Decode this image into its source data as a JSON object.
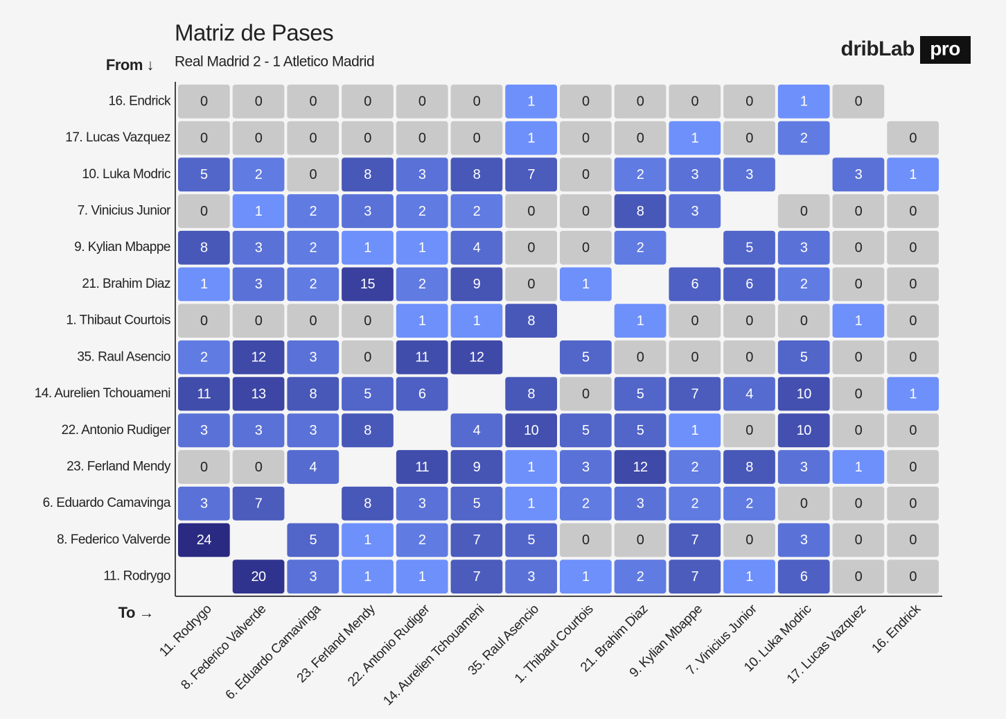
{
  "chart_data": {
    "type": "heatmap",
    "title": "Matriz de Pases",
    "subtitle": "Real Madrid 2 - 1 Atletico Madrid",
    "brand": "dribLab",
    "brand_badge": "pro",
    "y_axis_label": "From ↓",
    "x_axis_label": "To →",
    "rows": [
      "16. Endrick",
      "17. Lucas Vazquez",
      "10. Luka Modric",
      "7. Vinicius Junior",
      "9. Kylian Mbappe",
      "21. Brahim Diaz",
      "1. Thibaut Courtois",
      "35. Raul Asencio",
      "14. Aurelien Tchouameni",
      "22. Antonio Rudiger",
      "23. Ferland Mendy",
      "6. Eduardo Camavinga",
      "8. Federico Valverde",
      "11. Rodrygo"
    ],
    "columns": [
      "11. Rodrygo",
      "8. Federico Valverde",
      "6. Eduardo Camavinga",
      "23. Ferland Mendy",
      "22. Antonio Rudiger",
      "14. Aurelien Tchouameni",
      "35. Raul Asencio",
      "1. Thibaut Courtois",
      "21. Brahim Diaz",
      "9. Kylian Mbappe",
      "7. Vinicius Junior",
      "10. Luka Modric",
      "17. Lucas Vazquez",
      "16. Endrick"
    ],
    "values": [
      [
        0,
        0,
        0,
        0,
        0,
        0,
        1,
        0,
        0,
        0,
        0,
        1,
        0,
        null
      ],
      [
        0,
        0,
        0,
        0,
        0,
        0,
        1,
        0,
        0,
        1,
        0,
        2,
        null,
        0
      ],
      [
        5,
        2,
        0,
        8,
        3,
        8,
        7,
        0,
        2,
        3,
        3,
        null,
        3,
        1
      ],
      [
        0,
        1,
        2,
        3,
        2,
        2,
        0,
        0,
        8,
        3,
        null,
        0,
        0,
        0
      ],
      [
        8,
        3,
        2,
        1,
        1,
        4,
        0,
        0,
        2,
        null,
        5,
        3,
        0,
        0
      ],
      [
        1,
        3,
        2,
        15,
        2,
        9,
        0,
        1,
        null,
        6,
        6,
        2,
        0,
        0
      ],
      [
        0,
        0,
        0,
        0,
        1,
        1,
        8,
        null,
        1,
        0,
        0,
        0,
        1,
        0
      ],
      [
        2,
        12,
        3,
        0,
        11,
        12,
        null,
        5,
        0,
        0,
        0,
        5,
        0,
        0
      ],
      [
        11,
        13,
        8,
        5,
        6,
        null,
        8,
        0,
        5,
        7,
        4,
        10,
        0,
        1
      ],
      [
        3,
        3,
        3,
        8,
        null,
        4,
        10,
        5,
        5,
        1,
        0,
        10,
        0,
        0
      ],
      [
        0,
        0,
        4,
        null,
        11,
        9,
        1,
        3,
        12,
        2,
        8,
        3,
        1,
        0
      ],
      [
        3,
        7,
        null,
        8,
        3,
        5,
        1,
        2,
        3,
        2,
        2,
        0,
        0,
        0
      ],
      [
        24,
        null,
        5,
        1,
        2,
        7,
        5,
        0,
        0,
        7,
        0,
        3,
        0,
        0
      ],
      [
        null,
        20,
        3,
        1,
        1,
        7,
        3,
        1,
        2,
        7,
        1,
        6,
        0,
        0
      ]
    ],
    "zero_color": "#c9c9c9",
    "color_low": "#6e90fb",
    "color_high": "#2a2a82"
  }
}
